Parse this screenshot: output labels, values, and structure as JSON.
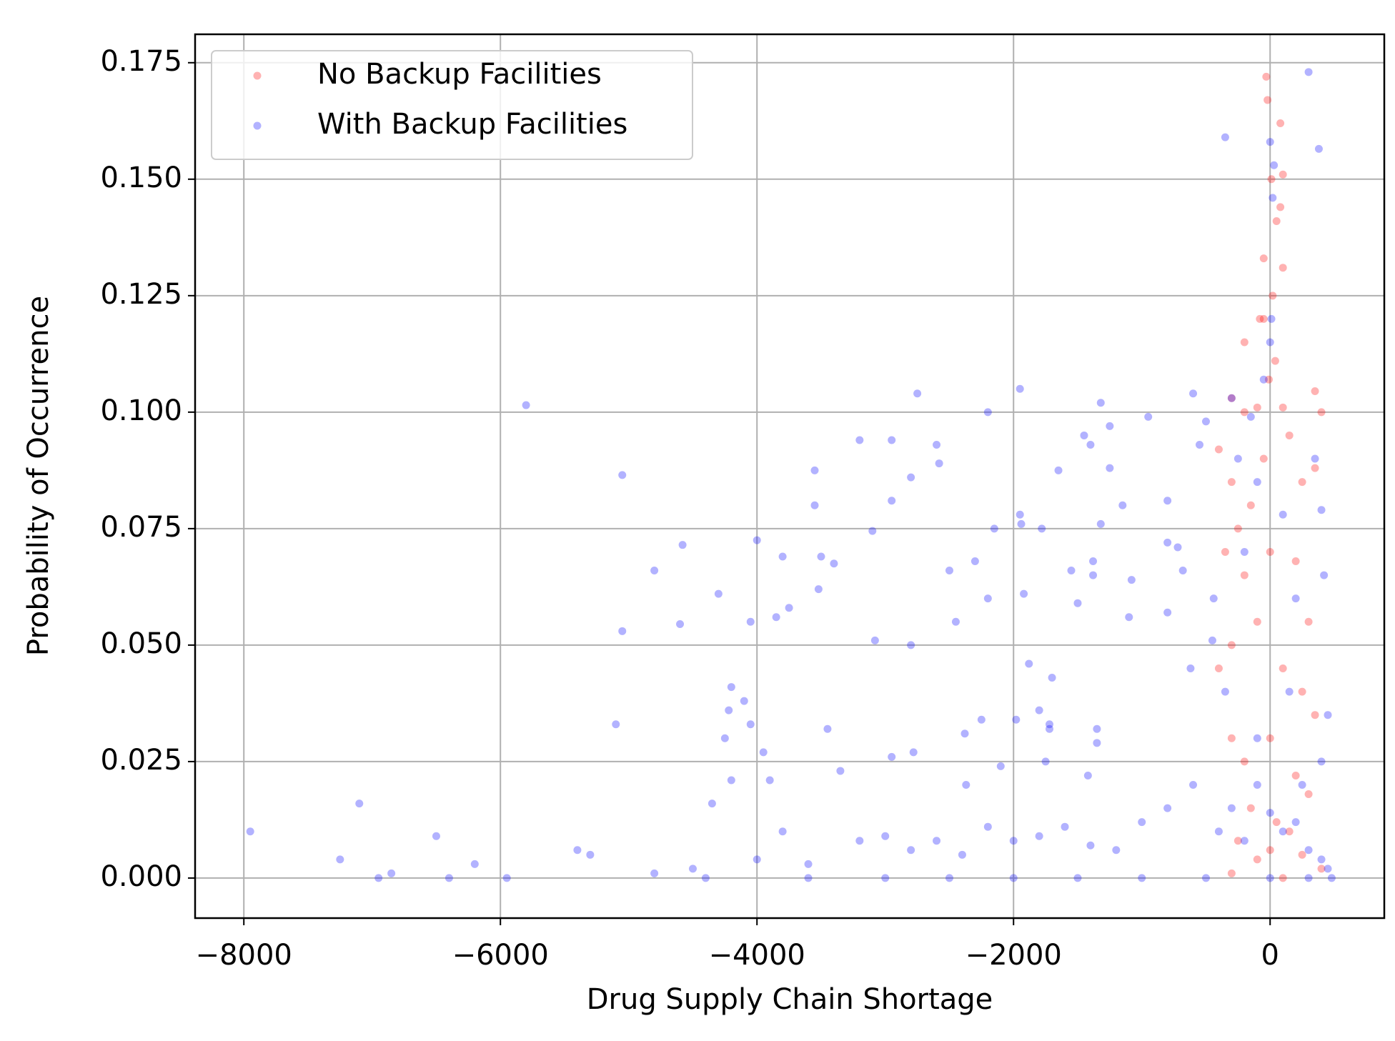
{
  "chart_data": {
    "type": "scatter",
    "x_label": "Drug Supply Chain Shortage",
    "y_label": "Probability of Occurrence",
    "xlim": [
      -8380,
      890
    ],
    "ylim": [
      -0.0086,
      0.1811
    ],
    "xticks": [
      {
        "value": -8000,
        "label": "−8000"
      },
      {
        "value": -6000,
        "label": "−6000"
      },
      {
        "value": -4000,
        "label": "−4000"
      },
      {
        "value": -2000,
        "label": "−2000"
      },
      0
    ],
    "yticks": [
      {
        "value": 0,
        "label": "0.000"
      },
      {
        "value": 0.025,
        "label": "0.025"
      },
      {
        "value": 0.05,
        "label": "0.050"
      },
      {
        "value": 0.075,
        "label": "0.075"
      },
      {
        "value": 0.1,
        "label": "0.100"
      },
      {
        "value": 0.125,
        "label": "0.125"
      },
      {
        "value": 0.15,
        "label": "0.150"
      },
      {
        "value": 0.175,
        "label": "0.175"
      }
    ],
    "grid": true,
    "legend": "upper left",
    "series": [
      {
        "name": "No Backup Facilities",
        "color": "#ff0000",
        "x": [
          -30,
          -20,
          80,
          100,
          10,
          50,
          80,
          -50,
          100,
          -50,
          -80,
          20,
          -200,
          40,
          -10,
          -300,
          -200,
          -100,
          100,
          350,
          400,
          -400,
          -300,
          -250,
          -150,
          -50,
          150,
          250,
          350,
          -350,
          -200,
          0,
          200,
          300,
          -400,
          -300,
          -100,
          100,
          250,
          350,
          -300,
          -200,
          0,
          200,
          300,
          -150,
          50,
          150,
          -250,
          250,
          -100,
          0,
          400,
          100,
          -300
        ],
        "values": [
          0.172,
          0.167,
          0.162,
          0.151,
          0.15,
          0.141,
          0.144,
          0.133,
          0.131,
          0.12,
          0.12,
          0.125,
          0.115,
          0.111,
          0.107,
          0.103,
          0.1,
          0.101,
          0.101,
          0.1045,
          0.1,
          0.092,
          0.085,
          0.075,
          0.08,
          0.09,
          0.095,
          0.085,
          0.088,
          0.07,
          0.065,
          0.07,
          0.068,
          0.055,
          0.045,
          0.05,
          0.055,
          0.045,
          0.04,
          0.035,
          0.03,
          0.025,
          0.03,
          0.022,
          0.018,
          0.015,
          0.012,
          0.01,
          0.008,
          0.005,
          0.004,
          0.006,
          0.002,
          0.0,
          0.001
        ]
      },
      {
        "name": "With Backup Facilities",
        "color": "#0000ff",
        "x": [
          -7950,
          -7250,
          -7100,
          -6950,
          -6850,
          -6500,
          -6400,
          -6200,
          -5950,
          -5800,
          -5400,
          -5300,
          -5100,
          -5050,
          -5050,
          -4800,
          -4600,
          -4580,
          -4300,
          -4350,
          -4250,
          -4200,
          -4220,
          -4200,
          -4100,
          -4050,
          -4050,
          -4000,
          -3950,
          -3900,
          -3850,
          -3800,
          -3750,
          -3550,
          -3550,
          -3500,
          -3520,
          -3450,
          -3400,
          -3350,
          -3200,
          -3100,
          -3080,
          -2950,
          -2950,
          -2950,
          -2800,
          -2800,
          -2780,
          -2750,
          -2600,
          -2580,
          -2450,
          -2500,
          -2380,
          -2370,
          -2300,
          -2250,
          -2200,
          -2200,
          -2150,
          -2100,
          -1980,
          -1950,
          -1950,
          -1940,
          -1920,
          -1880,
          -1800,
          -1780,
          -1750,
          -1720,
          -1720,
          -1700,
          -1650,
          -1550,
          -1500,
          -1450,
          -1420,
          -1400,
          -1380,
          -1380,
          -1350,
          -1350,
          -1320,
          -1320,
          -1250,
          -1250,
          -1150,
          -1100,
          -1080,
          -950,
          -800,
          -800,
          -800,
          -720,
          -680,
          -620,
          -600,
          -550,
          -500,
          -440,
          -4800,
          -4500,
          -4000,
          -3800,
          -3600,
          -3200,
          -3000,
          -2800,
          -2600,
          -2400,
          -2200,
          -2000,
          -1800,
          -1600,
          -1400,
          -1200,
          -1000,
          -800,
          -600,
          -400,
          -300,
          -200,
          -100,
          0,
          100,
          200,
          300,
          400,
          450,
          -4400,
          -3600,
          -3000,
          -2500,
          -2000,
          -1500,
          -1000,
          -500,
          0,
          300,
          480,
          -300,
          -250,
          -150,
          -50,
          0,
          30,
          20,
          10,
          0,
          380,
          300,
          -350,
          350,
          400,
          420,
          -450,
          -350,
          -200,
          -100,
          100,
          200,
          150,
          -100,
          450,
          400,
          250
        ],
        "values": [
          0.01,
          0.004,
          0.016,
          0.0,
          0.001,
          0.009,
          0.0,
          0.003,
          0.0,
          0.1015,
          0.006,
          0.005,
          0.033,
          0.0865,
          0.053,
          0.066,
          0.0545,
          0.0715,
          0.061,
          0.016,
          0.03,
          0.041,
          0.036,
          0.021,
          0.038,
          0.033,
          0.055,
          0.0725,
          0.027,
          0.021,
          0.056,
          0.069,
          0.058,
          0.0875,
          0.08,
          0.069,
          0.062,
          0.032,
          0.0675,
          0.023,
          0.094,
          0.0745,
          0.051,
          0.094,
          0.081,
          0.026,
          0.086,
          0.05,
          0.027,
          0.104,
          0.093,
          0.089,
          0.055,
          0.066,
          0.031,
          0.02,
          0.068,
          0.034,
          0.1,
          0.06,
          0.075,
          0.024,
          0.034,
          0.105,
          0.078,
          0.076,
          0.061,
          0.046,
          0.036,
          0.075,
          0.025,
          0.033,
          0.032,
          0.043,
          0.0875,
          0.066,
          0.059,
          0.095,
          0.022,
          0.093,
          0.065,
          0.068,
          0.032,
          0.029,
          0.102,
          0.076,
          0.097,
          0.088,
          0.08,
          0.056,
          0.064,
          0.099,
          0.081,
          0.072,
          0.057,
          0.071,
          0.066,
          0.045,
          0.104,
          0.093,
          0.098,
          0.06,
          0.001,
          0.002,
          0.004,
          0.01,
          0.003,
          0.008,
          0.009,
          0.006,
          0.008,
          0.005,
          0.011,
          0.008,
          0.009,
          0.011,
          0.007,
          0.006,
          0.012,
          0.015,
          0.02,
          0.01,
          0.015,
          0.008,
          0.02,
          0.014,
          0.01,
          0.012,
          0.006,
          0.004,
          0.002,
          0,
          0,
          0,
          0,
          0,
          0,
          0,
          0,
          0,
          0,
          0,
          0.103,
          0.09,
          0.099,
          0.107,
          0.158,
          0.153,
          0.146,
          0.12,
          0.115,
          0.1565,
          0.173,
          0.159,
          0.09,
          0.079,
          0.065,
          0.051,
          0.04,
          0.07,
          0.085,
          0.078,
          0.06,
          0.04,
          0.03,
          0.035,
          0.025,
          0.02
        ]
      }
    ]
  }
}
